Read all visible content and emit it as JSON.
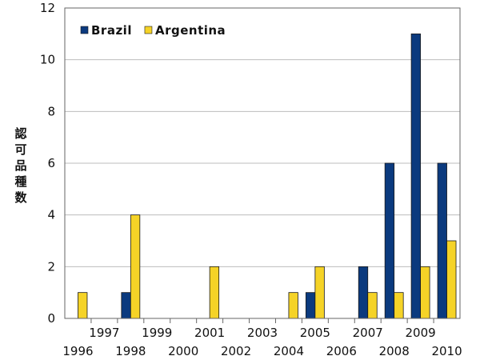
{
  "chart_data": {
    "type": "bar",
    "title": "",
    "xlabel": "",
    "ylabel": "認可品種数",
    "categories": [
      "1996",
      "1997",
      "1998",
      "1999",
      "2000",
      "2001",
      "2002",
      "2003",
      "2004",
      "2005",
      "2006",
      "2007",
      "2008",
      "2009",
      "2010"
    ],
    "series": [
      {
        "name": "Brazil",
        "color": "#0b3a7e",
        "values": [
          0,
          0,
          1,
          0,
          0,
          0,
          0,
          0,
          0,
          1,
          0,
          2,
          6,
          11,
          6
        ]
      },
      {
        "name": "Argentina",
        "color": "#f5d327",
        "values": [
          1,
          0,
          4,
          0,
          0,
          2,
          0,
          0,
          1,
          2,
          0,
          1,
          1,
          2,
          3
        ]
      }
    ],
    "ylim": [
      0,
      12
    ],
    "yticks": [
      0,
      2,
      4,
      6,
      8,
      10,
      12
    ],
    "grid": true,
    "legend_position": "top-left"
  }
}
